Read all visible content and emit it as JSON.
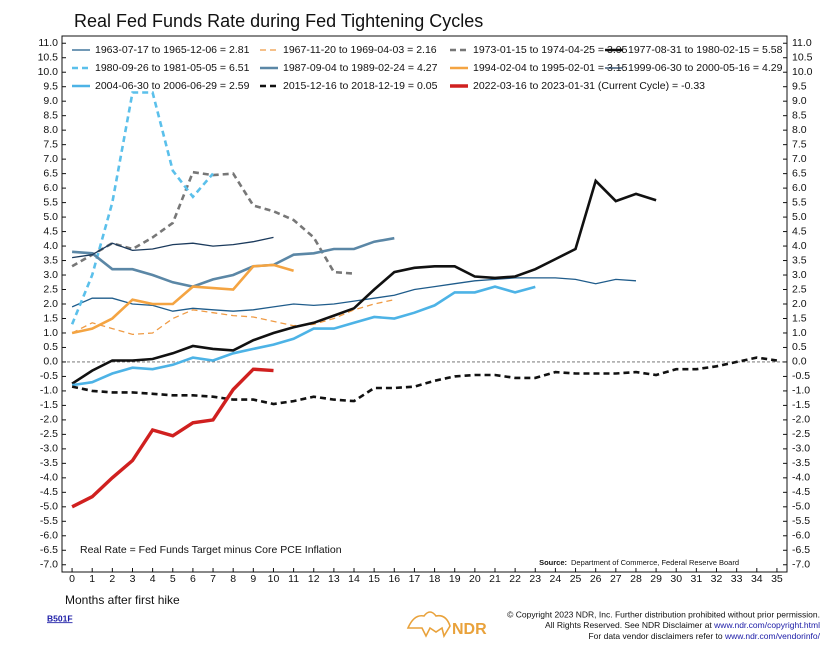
{
  "chart_data": {
    "type": "line",
    "title": "Real Fed Funds Rate during Fed Tightening Cycles",
    "xlabel": "Months after first hike",
    "annotation": "Real Rate = Fed Funds Target minus Core PCE Inflation",
    "source": "Source:",
    "source_text": "Department of Commerce, Federal Reserve Board",
    "x": [
      0,
      1,
      2,
      3,
      4,
      5,
      6,
      7,
      8,
      9,
      10,
      11,
      12,
      13,
      14,
      15,
      16,
      17,
      18,
      19,
      20,
      21,
      22,
      23,
      24,
      25,
      26,
      27,
      28,
      29,
      30,
      31,
      32,
      33,
      34,
      35
    ],
    "xlim": [
      -0.5,
      35.5
    ],
    "xticks": [
      0,
      1,
      2,
      3,
      4,
      5,
      6,
      7,
      8,
      9,
      10,
      11,
      12,
      13,
      14,
      15,
      16,
      17,
      18,
      19,
      20,
      21,
      22,
      23,
      24,
      25,
      26,
      27,
      28,
      29,
      30,
      31,
      32,
      33,
      34,
      35
    ],
    "ylim": [
      -7.25,
      11.25
    ],
    "yticks": [
      {
        "value": 11,
        "label": "11.0"
      },
      {
        "value": 10.5,
        "label": "10.5"
      },
      {
        "value": 10,
        "label": "10.0"
      },
      {
        "value": 9.5,
        "label": "9.5"
      },
      {
        "value": 9,
        "label": "9.0"
      },
      {
        "value": 8.5,
        "label": "8.5"
      },
      {
        "value": 8,
        "label": "8.0"
      },
      {
        "value": 7.5,
        "label": "7.5"
      },
      {
        "value": 7,
        "label": "7.0"
      },
      {
        "value": 6.5,
        "label": "6.5"
      },
      {
        "value": 6,
        "label": "6.0"
      },
      {
        "value": 5.5,
        "label": "5.5"
      },
      {
        "value": 5,
        "label": "5.0"
      },
      {
        "value": 4.5,
        "label": "4.5"
      },
      {
        "value": 4,
        "label": "4.0"
      },
      {
        "value": 3.5,
        "label": "3.5"
      },
      {
        "value": 3,
        "label": "3.0"
      },
      {
        "value": 2.5,
        "label": "2.5"
      },
      {
        "value": 2,
        "label": "2.0"
      },
      {
        "value": 1.5,
        "label": "1.5"
      },
      {
        "value": 1,
        "label": "1.0"
      },
      {
        "value": 0.5,
        "label": "0.5"
      },
      {
        "value": 0,
        "label": "0.0"
      },
      {
        "value": -0.5,
        "label": "-0.5"
      },
      {
        "value": -1,
        "label": "-1.0"
      },
      {
        "value": -1.5,
        "label": "-1.5"
      },
      {
        "value": -2,
        "label": "-2.0"
      },
      {
        "value": -2.5,
        "label": "-2.5"
      },
      {
        "value": -3,
        "label": "-3.0"
      },
      {
        "value": -3.5,
        "label": "-3.5"
      },
      {
        "value": -4,
        "label": "-4.0"
      },
      {
        "value": -4.5,
        "label": "-4.5"
      },
      {
        "value": -5,
        "label": "-5.0"
      },
      {
        "value": -5.5,
        "label": "-5.5"
      },
      {
        "value": -6,
        "label": "-6.0"
      },
      {
        "value": -6.5,
        "label": "-6.5"
      },
      {
        "value": -7,
        "label": "-7.0"
      }
    ],
    "series": [
      {
        "name": "1963-07-17 to 1965-12-06 = 2.81",
        "color": "#1f5c8b",
        "style": "solid",
        "weight": "thin",
        "values": [
          1.9,
          2.2,
          2.2,
          2.0,
          1.95,
          1.75,
          1.85,
          1.8,
          1.75,
          1.8,
          1.9,
          2.0,
          1.95,
          2.0,
          2.1,
          2.2,
          2.3,
          2.5,
          2.6,
          2.7,
          2.8,
          2.85,
          2.9,
          2.9,
          2.9,
          2.85,
          2.7,
          2.85,
          2.8,
          null,
          null,
          null,
          null,
          null,
          null,
          null
        ]
      },
      {
        "name": "1967-11-20 to 1969-04-03 = 2.16",
        "color": "#ef9b45",
        "style": "dashed",
        "weight": "thin",
        "values": [
          1.0,
          1.35,
          1.15,
          0.95,
          1.0,
          1.5,
          1.8,
          1.7,
          1.6,
          1.55,
          1.4,
          1.25,
          1.3,
          1.5,
          1.8,
          2.0,
          2.15,
          null,
          null,
          null,
          null,
          null,
          null,
          null,
          null,
          null,
          null,
          null,
          null,
          null,
          null,
          null,
          null,
          null,
          null,
          null
        ]
      },
      {
        "name": "1973-01-15 to 1974-04-25 = 3.05",
        "color": "#777777",
        "style": "dashed",
        "weight": "thick",
        "values": [
          3.3,
          3.7,
          4.1,
          3.9,
          4.3,
          4.8,
          6.55,
          6.45,
          6.5,
          5.4,
          5.2,
          4.9,
          4.3,
          3.1,
          3.05,
          null,
          null,
          null,
          null,
          null,
          null,
          null,
          null,
          null,
          null,
          null,
          null,
          null,
          null,
          null,
          null,
          null,
          null,
          null,
          null,
          null
        ]
      },
      {
        "name": "1977-08-31 to 1980-02-15 = 5.58",
        "color": "#111111",
        "style": "solid",
        "weight": "thick",
        "values": [
          -0.75,
          -0.3,
          0.05,
          0.05,
          0.1,
          0.3,
          0.55,
          0.45,
          0.4,
          0.75,
          1.0,
          1.2,
          1.35,
          1.6,
          1.85,
          2.5,
          3.1,
          3.25,
          3.3,
          3.3,
          2.95,
          2.9,
          2.95,
          3.2,
          3.55,
          3.9,
          6.25,
          5.55,
          5.8,
          5.58,
          null,
          null,
          null,
          null,
          null,
          null
        ]
      },
      {
        "name": "1980-09-26 to 1981-05-05 = 6.51",
        "color": "#5bc0eb",
        "style": "dashed",
        "weight": "thick",
        "values": [
          1.3,
          3.0,
          5.5,
          9.3,
          9.3,
          6.6,
          5.7,
          6.5,
          null,
          null,
          null,
          null,
          null,
          null,
          null,
          null,
          null,
          null,
          null,
          null,
          null,
          null,
          null,
          null,
          null,
          null,
          null,
          null,
          null,
          null,
          null,
          null,
          null,
          null,
          null,
          null
        ]
      },
      {
        "name": "1987-09-04 to 1989-02-24 = 4.27",
        "color": "#5b87a6",
        "style": "solid",
        "weight": "thick",
        "values": [
          3.8,
          3.75,
          3.2,
          3.2,
          3.0,
          2.75,
          2.6,
          2.85,
          3.0,
          3.3,
          3.35,
          3.7,
          3.75,
          3.9,
          3.9,
          4.15,
          4.27,
          null,
          null,
          null,
          null,
          null,
          null,
          null,
          null,
          null,
          null,
          null,
          null,
          null,
          null,
          null,
          null,
          null,
          null,
          null
        ]
      },
      {
        "name": "1994-02-04 to 1995-02-01 = 3.15",
        "color": "#f4a442",
        "style": "solid",
        "weight": "thick",
        "values": [
          1.0,
          1.15,
          1.5,
          2.15,
          2.0,
          2.0,
          2.6,
          2.55,
          2.5,
          3.3,
          3.35,
          3.15,
          null,
          null,
          null,
          null,
          null,
          null,
          null,
          null,
          null,
          null,
          null,
          null,
          null,
          null,
          null,
          null,
          null,
          null,
          null,
          null,
          null,
          null,
          null,
          null
        ]
      },
      {
        "name": "1999-06-30 to 2000-05-16 = 4.29",
        "color": "#1b3a5c",
        "style": "solid",
        "weight": "thin",
        "values": [
          3.6,
          3.7,
          4.1,
          3.85,
          3.9,
          4.05,
          4.1,
          4.0,
          4.05,
          4.15,
          4.3,
          null,
          null,
          null,
          null,
          null,
          null,
          null,
          null,
          null,
          null,
          null,
          null,
          null,
          null,
          null,
          null,
          null,
          null,
          null,
          null,
          null,
          null,
          null,
          null,
          null
        ]
      },
      {
        "name": "2004-06-30 to 2006-06-29 = 2.59",
        "color": "#4db3e6",
        "style": "solid",
        "weight": "thick",
        "values": [
          -0.8,
          -0.7,
          -0.4,
          -0.2,
          -0.25,
          -0.1,
          0.15,
          0.05,
          0.3,
          0.45,
          0.6,
          0.8,
          1.15,
          1.15,
          1.35,
          1.55,
          1.5,
          1.7,
          1.95,
          2.4,
          2.4,
          2.6,
          2.4,
          2.59,
          null,
          null,
          null,
          null,
          null,
          null,
          null,
          null,
          null,
          null,
          null,
          null
        ]
      },
      {
        "name": "2015-12-16 to 2018-12-19 = 0.05",
        "color": "#111111",
        "style": "dashed",
        "weight": "thick",
        "values": [
          -0.85,
          -1.0,
          -1.05,
          -1.05,
          -1.1,
          -1.15,
          -1.15,
          -1.2,
          -1.3,
          -1.3,
          -1.45,
          -1.35,
          -1.2,
          -1.3,
          -1.35,
          -0.9,
          -0.9,
          -0.85,
          -0.65,
          -0.5,
          -0.45,
          -0.45,
          -0.55,
          -0.55,
          -0.35,
          -0.4,
          -0.4,
          -0.4,
          -0.35,
          -0.45,
          -0.25,
          -0.25,
          -0.15,
          0.0,
          0.15,
          0.05
        ]
      },
      {
        "name": "2022-03-16 to 2023-01-31 (Current Cycle) = -0.33",
        "color": "#d0201f",
        "style": "solid",
        "weight": "heavy",
        "values": [
          -5.0,
          -4.65,
          -4.0,
          -3.4,
          -2.35,
          -2.55,
          -2.1,
          -2.0,
          -0.95,
          -0.25,
          -0.3,
          null,
          null,
          null,
          null,
          null,
          null,
          null,
          null,
          null,
          null,
          null,
          null,
          null,
          null,
          null,
          null,
          null,
          null,
          null,
          null,
          null,
          null,
          null,
          null,
          null
        ]
      }
    ]
  },
  "footer": {
    "code": "B501F",
    "logo": "NDR",
    "line1": "© Copyright 2023 NDR, Inc. Further distribution prohibited without prior permission.",
    "line2": "All Rights Reserved. See NDR Disclaimer at",
    "link2": "www.ndr.com/copyright.html",
    "line3": "For data vendor disclaimers refer to",
    "link3": "www.ndr.com/vendorinfo/"
  }
}
